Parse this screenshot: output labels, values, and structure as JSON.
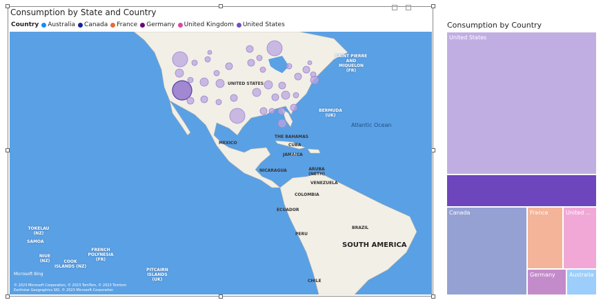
{
  "map": {
    "title": "Consumption by State and Country",
    "legend": {
      "title": "Country",
      "items": [
        {
          "label": "Australia",
          "color": "#118dff"
        },
        {
          "label": "Canada",
          "color": "#12239e"
        },
        {
          "label": "France",
          "color": "#e66c37"
        },
        {
          "label": "Germany",
          "color": "#6b007b"
        },
        {
          "label": "United Kingdom",
          "color": "#e044a7"
        },
        {
          "label": "United States",
          "color": "#744ec2"
        }
      ]
    },
    "labels": {
      "united_states": "UNITED STATES",
      "mexico": "MEXICO",
      "saint_pierre": "SAINT PIERRE AND MIQUELON (FR)",
      "bermuda": "BERMUDA (UK)",
      "atlantic": "Atlantic Ocean",
      "bahamas": "THE BAHAMAS",
      "cuba": "CUBA",
      "jamaica": "JAMAICA",
      "nicaragua": "NICARAGUA",
      "aruba": "ARUBA (NETH)",
      "venezuela": "VENEZUELA",
      "colombia": "COLOMBIA",
      "ecuador": "ECUADOR",
      "peru": "PERU",
      "brazil": "BRAZIL",
      "south_america": "SOUTH AMERICA",
      "chile": "CHILE",
      "tokelau": "TOKELAU (NZ)",
      "samoa": "SAMOA",
      "niue": "NIUE (NZ)",
      "cook_islands": "COOK ISLANDS (NZ)",
      "french_polynesia": "FRENCH POLYNESIA (FR)",
      "pitcairn": "PITCAIRN ISLANDS (UK)"
    },
    "provider": "Microsoft Bing",
    "copyright_line1": "© 2023 Microsoft Corporation, © 2023 TomTom, © 2023 Tomtom",
    "copyright_line2": "Earthstar Geographics SIO, © 2023 Microsoft Corporation"
  },
  "treemap": {
    "title": "Consumption by Country",
    "tiles": [
      {
        "label": "United States",
        "color": "#c0aee3"
      },
      {
        "label": "",
        "color": "#6d45bd"
      },
      {
        "label": "Canada",
        "color": "#95a1d3"
      },
      {
        "label": "France",
        "color": "#f3b49a"
      },
      {
        "label": "United ...",
        "color": "#f1a8d6"
      },
      {
        "label": "Germany",
        "color": "#c48bcb"
      },
      {
        "label": "Australia",
        "color": "#9ccdfb"
      }
    ]
  }
}
